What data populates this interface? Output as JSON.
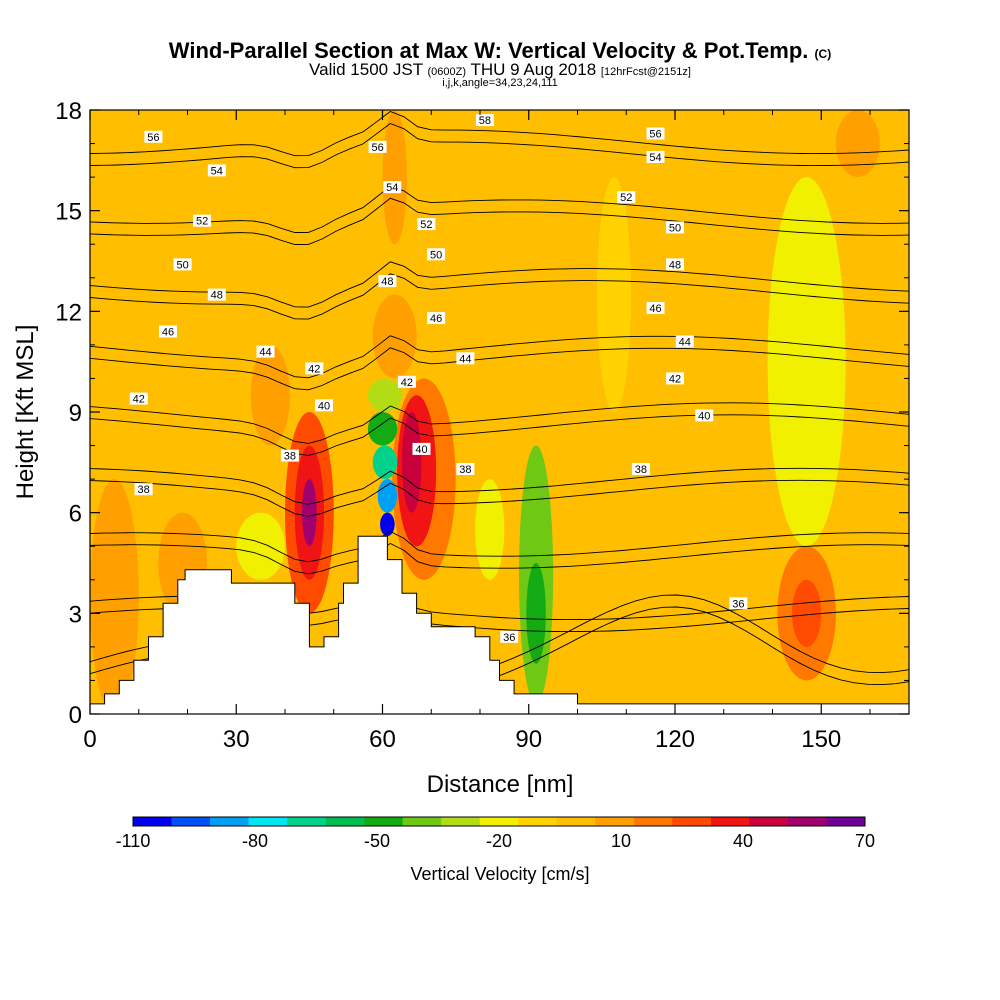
{
  "header": {
    "title": "Wind-Parallel Section at Max W: Vertical Velocity & Pot.Temp.",
    "title_mark": "(C)",
    "valid_a": "Valid 1500 JST",
    "valid_z": "(0600Z)",
    "valid_b": "THU 9 Aug 2018",
    "forecast": "[12hrFcst@2151z]",
    "params": "i,j,k,angle=34,23,24,111"
  },
  "chart_data": {
    "type": "heatmap",
    "xlabel": "Distance [nm]",
    "ylabel": "Height [Kft MSL]",
    "xlim": [
      0,
      168
    ],
    "ylim": [
      0,
      18
    ],
    "xticks": [
      0,
      30,
      60,
      90,
      120,
      150
    ],
    "yticks": [
      0,
      3,
      6,
      9,
      12,
      15,
      18
    ],
    "colorbar": {
      "label": "Vertical Velocity [cm/s]",
      "levels": [
        -110,
        -100,
        -90,
        -80,
        -70,
        -60,
        -50,
        -40,
        -30,
        -20,
        -10,
        0,
        10,
        20,
        30,
        40,
        50,
        60,
        70
      ],
      "tick_labels": [
        -110,
        -80,
        -50,
        -20,
        10,
        40,
        70
      ],
      "colors": [
        "#0000ee",
        "#0050f5",
        "#00a0f5",
        "#00e6f0",
        "#00d28c",
        "#00be50",
        "#14aa14",
        "#6ec814",
        "#b4dc14",
        "#f0f000",
        "#ffd200",
        "#ffbe00",
        "#ffa000",
        "#ff7800",
        "#ff4b00",
        "#f01414",
        "#c8003c",
        "#a0006e",
        "#6e0096"
      ]
    },
    "background_w": 2,
    "w_cells": [
      {
        "x": [
          0,
          10
        ],
        "z": [
          0,
          7
        ],
        "w": 10
      },
      {
        "x": [
          15,
          25
        ],
        "z": [
          9,
          13
        ],
        "w": 8
      },
      {
        "x": [
          14,
          24
        ],
        "z": [
          3,
          6
        ],
        "w": 14
      },
      {
        "x": [
          33,
          41
        ],
        "z": [
          8,
          11
        ],
        "w": 14
      },
      {
        "x": [
          40,
          50
        ],
        "z": [
          3,
          9
        ],
        "w": 30
      },
      {
        "x": [
          42,
          48
        ],
        "z": [
          4,
          8
        ],
        "w": 45
      },
      {
        "x": [
          43.5,
          46.5
        ],
        "z": [
          5,
          7
        ],
        "w": 65
      },
      {
        "x": [
          62,
          75
        ],
        "z": [
          4,
          10
        ],
        "w": 20
      },
      {
        "x": [
          63,
          71
        ],
        "z": [
          5,
          9.5
        ],
        "w": 40
      },
      {
        "x": [
          64,
          68
        ],
        "z": [
          6,
          9
        ],
        "w": 55
      },
      {
        "x": [
          58,
          67
        ],
        "z": [
          10,
          12.5
        ],
        "w": 18
      },
      {
        "x": [
          60,
          65
        ],
        "z": [
          14,
          18
        ],
        "w": 12
      },
      {
        "x": [
          79,
          85
        ],
        "z": [
          4,
          7
        ],
        "w": -18
      },
      {
        "x": [
          88,
          95
        ],
        "z": [
          0.3,
          8
        ],
        "w": -32
      },
      {
        "x": [
          89.5,
          93.5
        ],
        "z": [
          1.5,
          4.5
        ],
        "w": -45
      },
      {
        "x": [
          141,
          153
        ],
        "z": [
          1,
          5
        ],
        "w": 22
      },
      {
        "x": [
          144,
          150
        ],
        "z": [
          2,
          4
        ],
        "w": 32
      },
      {
        "x": [
          153,
          162
        ],
        "z": [
          16,
          18
        ],
        "w": 14
      },
      {
        "x": [
          143,
          152
        ],
        "z": [
          10,
          14
        ],
        "w": -22
      },
      {
        "x": [
          139,
          155
        ],
        "z": [
          5,
          16
        ],
        "w": -12
      },
      {
        "x": [
          104,
          111
        ],
        "z": [
          9,
          16
        ],
        "w": -5
      },
      {
        "x": [
          30,
          40
        ],
        "z": [
          4,
          6
        ],
        "w": -15
      }
    ],
    "updraft_core": [
      {
        "x": [
          57,
          64
        ],
        "z": [
          9,
          10
        ],
        "w": -30
      },
      {
        "x": [
          57,
          63
        ],
        "z": [
          8,
          9
        ],
        "w": -50
      },
      {
        "x": [
          58,
          63
        ],
        "z": [
          7,
          8
        ],
        "w": -65
      },
      {
        "x": [
          59,
          63
        ],
        "z": [
          6,
          7
        ],
        "w": -85
      },
      {
        "x": [
          59.5,
          62.5
        ],
        "z": [
          5.3,
          6
        ],
        "w": -105
      }
    ],
    "theta_levels": [
      36,
      38,
      40,
      42,
      44,
      46,
      48,
      50,
      52,
      54,
      56,
      58
    ],
    "theta_labels": [
      {
        "text": "58",
        "x": 81,
        "z": 17.7
      },
      {
        "text": "56",
        "x": 13,
        "z": 17.2
      },
      {
        "text": "56",
        "x": 116,
        "z": 17.3
      },
      {
        "text": "56",
        "x": 59,
        "z": 16.9
      },
      {
        "text": "54",
        "x": 26,
        "z": 16.2
      },
      {
        "text": "54",
        "x": 116,
        "z": 16.6
      },
      {
        "text": "54",
        "x": 62,
        "z": 15.7
      },
      {
        "text": "52",
        "x": 23,
        "z": 14.7
      },
      {
        "text": "52",
        "x": 110,
        "z": 15.4
      },
      {
        "text": "52",
        "x": 69,
        "z": 14.6
      },
      {
        "text": "50",
        "x": 19,
        "z": 13.4
      },
      {
        "text": "50",
        "x": 120,
        "z": 14.5
      },
      {
        "text": "50",
        "x": 71,
        "z": 13.7
      },
      {
        "text": "48",
        "x": 26,
        "z": 12.5
      },
      {
        "text": "48",
        "x": 120,
        "z": 13.4
      },
      {
        "text": "48",
        "x": 61,
        "z": 12.9
      },
      {
        "text": "46",
        "x": 16,
        "z": 11.4
      },
      {
        "text": "46",
        "x": 116,
        "z": 12.1
      },
      {
        "text": "46",
        "x": 71,
        "z": 11.8
      },
      {
        "text": "44",
        "x": 36,
        "z": 10.8
      },
      {
        "text": "44",
        "x": 122,
        "z": 11.1
      },
      {
        "text": "44",
        "x": 77,
        "z": 10.6
      },
      {
        "text": "42",
        "x": 10,
        "z": 9.4
      },
      {
        "text": "42",
        "x": 46,
        "z": 10.3
      },
      {
        "text": "42",
        "x": 120,
        "z": 10.0
      },
      {
        "text": "42",
        "x": 65,
        "z": 9.9
      },
      {
        "text": "40",
        "x": 48,
        "z": 9.2
      },
      {
        "text": "40",
        "x": 126,
        "z": 8.9
      },
      {
        "text": "40",
        "x": 68,
        "z": 7.9
      },
      {
        "text": "38",
        "x": 41,
        "z": 7.7
      },
      {
        "text": "38",
        "x": 11,
        "z": 6.7
      },
      {
        "text": "38",
        "x": 77,
        "z": 7.3
      },
      {
        "text": "38",
        "x": 113,
        "z": 7.3
      },
      {
        "text": "36",
        "x": 133,
        "z": 3.3
      },
      {
        "text": "36",
        "x": 86,
        "z": 2.3
      }
    ],
    "terrain": [
      [
        0,
        0
      ],
      [
        0,
        0.3
      ],
      [
        3,
        0.3
      ],
      [
        3,
        0.6
      ],
      [
        6,
        0.6
      ],
      [
        6,
        1.0
      ],
      [
        9,
        1.0
      ],
      [
        9,
        1.6
      ],
      [
        12,
        1.6
      ],
      [
        12,
        2.3
      ],
      [
        15,
        2.3
      ],
      [
        15,
        3.3
      ],
      [
        18,
        3.3
      ],
      [
        18,
        4.0
      ],
      [
        19.5,
        4.0
      ],
      [
        19.5,
        4.3
      ],
      [
        29,
        4.3
      ],
      [
        29,
        3.9
      ],
      [
        42,
        3.9
      ],
      [
        42,
        3.3
      ],
      [
        45,
        3.3
      ],
      [
        45,
        2.0
      ],
      [
        48,
        2.0
      ],
      [
        48,
        2.3
      ],
      [
        51,
        2.3
      ],
      [
        51,
        3.3
      ],
      [
        52,
        3.3
      ],
      [
        52,
        3.9
      ],
      [
        55,
        3.9
      ],
      [
        55,
        5.3
      ],
      [
        61,
        5.3
      ],
      [
        61,
        4.6
      ],
      [
        64,
        4.6
      ],
      [
        64,
        3.6
      ],
      [
        67,
        3.6
      ],
      [
        67,
        3.0
      ],
      [
        70,
        3.0
      ],
      [
        70,
        2.6
      ],
      [
        79,
        2.6
      ],
      [
        79,
        2.3
      ],
      [
        82,
        2.3
      ],
      [
        82,
        1.6
      ],
      [
        84,
        1.6
      ],
      [
        84,
        1.0
      ],
      [
        87,
        1.0
      ],
      [
        87,
        0.6
      ],
      [
        100,
        0.6
      ],
      [
        100,
        0.3
      ],
      [
        168,
        0.3
      ],
      [
        168,
        0
      ]
    ]
  }
}
